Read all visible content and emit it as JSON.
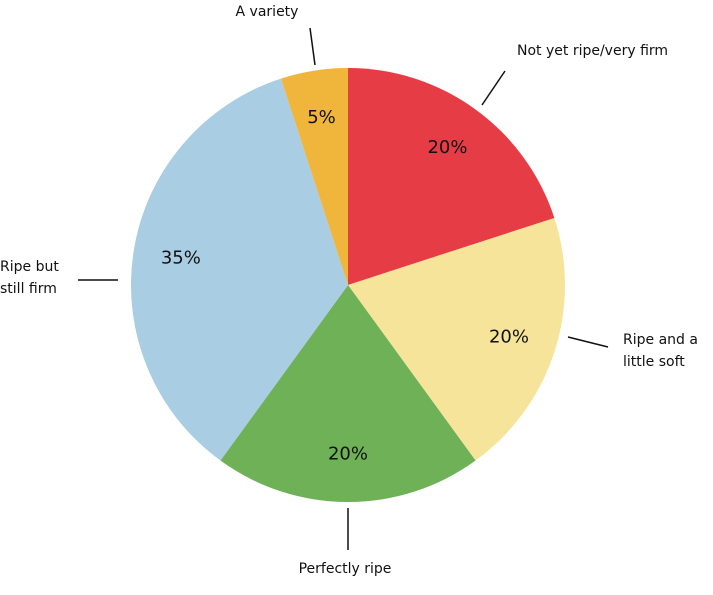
{
  "chart_data": {
    "type": "pie",
    "categories": [
      "Not yet ripe/very firm",
      "Ripe and a little soft",
      "Perfectly ripe",
      "Ripe but still firm",
      "A variety"
    ],
    "values": [
      20,
      20,
      20,
      35,
      5
    ],
    "value_labels": [
      "20%",
      "20%",
      "20%",
      "35%",
      "5%"
    ],
    "colors": [
      "#e63c46",
      "#f7e49b",
      "#6fb157",
      "#a9cde2",
      "#f0b53b"
    ]
  }
}
